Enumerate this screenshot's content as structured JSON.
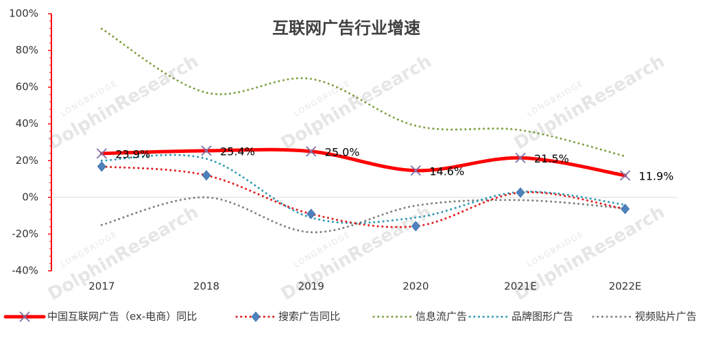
{
  "chart_data": {
    "type": "line",
    "title": "互联网广告行业增速",
    "watermark": "DolphinResearch",
    "watermark_small": "LONGBRIDGE",
    "categories": [
      "2017",
      "2018",
      "2019",
      "2020",
      "2021E",
      "2022E"
    ],
    "series": [
      {
        "name": "中国互联网广告（ex-电商）同比",
        "color": "#ff0000",
        "line_width": 5,
        "dash": "solid",
        "marker": "x",
        "marker_color": "#7f6fa8",
        "values": [
          23.9,
          25.4,
          25.0,
          14.6,
          21.5,
          11.9
        ],
        "value_labels": [
          "23.9%",
          "25.4%",
          "25.0%",
          "14.6%",
          "21.5%",
          "11.9%"
        ]
      },
      {
        "name": "搜索广告同比",
        "color": "#e31a1c",
        "line_width": 3,
        "dash": "dotted",
        "marker": "diamond",
        "marker_color": "#4f81bd",
        "values": [
          16.8,
          12,
          -9,
          -15.7,
          2.6,
          -6.3
        ]
      },
      {
        "name": "信息流广告",
        "color": "#7fa040",
        "line_width": 3,
        "dash": "dotted",
        "marker": "none",
        "values": [
          91.8,
          57,
          64.5,
          39,
          36.6,
          22.4
        ]
      },
      {
        "name": "品牌图形广告",
        "color": "#2f9bb5",
        "line_width": 3,
        "dash": "dotted",
        "marker": "none",
        "values": [
          20,
          21,
          -11,
          -11,
          3,
          -4
        ]
      },
      {
        "name": "视频贴片广告",
        "color": "#808080",
        "line_width": 3,
        "dash": "dotted",
        "marker": "none",
        "values": [
          -15,
          0,
          -19,
          -4.5,
          -1.5,
          -6
        ]
      }
    ],
    "ylim": [
      -40,
      100
    ],
    "yticks": [
      {
        "value": -40,
        "label": "-40%"
      },
      {
        "value": -20,
        "label": "-20%"
      },
      {
        "value": 0,
        "label": "0%"
      },
      {
        "value": 20,
        "label": "20%"
      },
      {
        "value": 40,
        "label": "40%"
      },
      {
        "value": 60,
        "label": "60%"
      },
      {
        "value": 80,
        "label": "80%"
      },
      {
        "value": 100,
        "label": "100%"
      }
    ],
    "grid": false,
    "smooth": true,
    "legend": "bottom"
  }
}
